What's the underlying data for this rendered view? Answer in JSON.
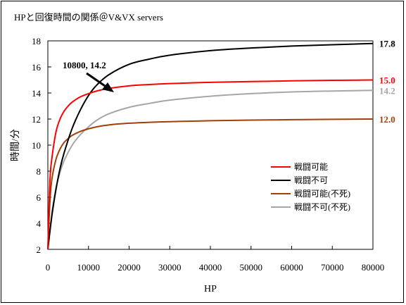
{
  "chart_data": {
    "type": "line",
    "title": "HPと回復時間の関係＠V&VX servers",
    "xlabel": "HP",
    "ylabel": "時間/分",
    "xlim": [
      0,
      80000
    ],
    "ylim": [
      2,
      18
    ],
    "xticks": [
      0,
      10000,
      20000,
      30000,
      40000,
      50000,
      60000,
      70000,
      80000
    ],
    "yticks": [
      2,
      4,
      6,
      8,
      10,
      12,
      14,
      16,
      18
    ],
    "grid": false,
    "legend_position": "center-right",
    "annotation": {
      "text": "10800, 14.2",
      "x": 10800,
      "y": 14.2
    },
    "series": [
      {
        "name": "戦闘可能",
        "color": "#ff0000",
        "end_label": "15.0",
        "x": [
          0,
          500,
          1000,
          2000,
          3000,
          4000,
          5000,
          6000,
          8000,
          10000,
          12000,
          15000,
          20000,
          25000,
          30000,
          40000,
          50000,
          60000,
          70000,
          80000
        ],
        "y": [
          2,
          7.2,
          9.0,
          11.0,
          12.0,
          12.6,
          13.0,
          13.3,
          13.7,
          13.95,
          14.15,
          14.35,
          14.55,
          14.65,
          14.72,
          14.82,
          14.88,
          14.93,
          14.97,
          15.0
        ]
      },
      {
        "name": "戦闘不可",
        "color": "#000000",
        "end_label": "17.8",
        "x": [
          0,
          1000,
          2000,
          3000,
          4000,
          6000,
          8000,
          10000,
          12000,
          15000,
          20000,
          25000,
          30000,
          40000,
          50000,
          60000,
          70000,
          80000
        ],
        "y": [
          2,
          4.6,
          6.6,
          8.2,
          9.4,
          11.3,
          12.7,
          13.8,
          14.6,
          15.4,
          16.2,
          16.6,
          16.9,
          17.25,
          17.45,
          17.6,
          17.7,
          17.8
        ]
      },
      {
        "name": "戦闘可能(不死)",
        "color": "#a0400a",
        "end_label": "12.0",
        "x": [
          0,
          500,
          1000,
          2000,
          3000,
          4000,
          5000,
          6000,
          8000,
          10000,
          12000,
          15000,
          20000,
          25000,
          30000,
          40000,
          50000,
          60000,
          70000,
          80000
        ],
        "y": [
          2,
          5.6,
          7.4,
          8.9,
          9.7,
          10.2,
          10.5,
          10.75,
          11.05,
          11.25,
          11.4,
          11.55,
          11.68,
          11.75,
          11.8,
          11.87,
          11.92,
          11.95,
          11.98,
          12.0
        ]
      },
      {
        "name": "戦闘不可(不死)",
        "color": "#a6a6a6",
        "end_label": "14.2",
        "x": [
          0,
          1000,
          2000,
          3000,
          4000,
          6000,
          8000,
          10000,
          12000,
          15000,
          20000,
          25000,
          30000,
          40000,
          50000,
          60000,
          70000,
          80000
        ],
        "y": [
          2,
          4.8,
          6.7,
          7.9,
          8.8,
          10.0,
          10.8,
          11.4,
          11.9,
          12.4,
          12.9,
          13.2,
          13.45,
          13.75,
          13.95,
          14.08,
          14.15,
          14.2
        ]
      }
    ]
  }
}
